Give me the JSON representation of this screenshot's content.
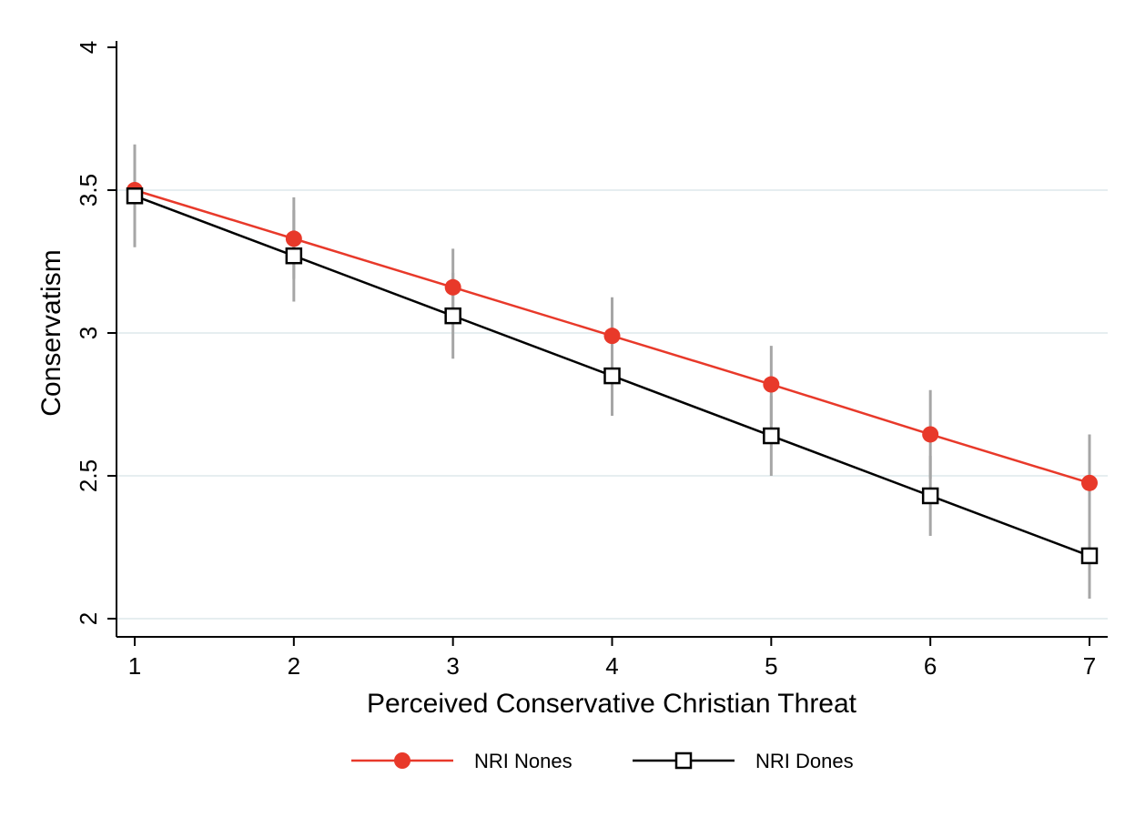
{
  "chart_data": {
    "type": "line",
    "title": "",
    "xlabel": "Perceived Conservative Christian Threat",
    "ylabel": "Conservatism",
    "x": [
      1,
      2,
      3,
      4,
      5,
      6,
      7
    ],
    "x_ticks": [
      "1",
      "2",
      "3",
      "4",
      "5",
      "6",
      "7"
    ],
    "y_ticks": [
      "2",
      "2.5",
      "3",
      "3.5",
      "4"
    ],
    "xlim": [
      1,
      7
    ],
    "ylim": [
      2,
      4
    ],
    "grid": "horizontal",
    "legend_position": "bottom",
    "series": [
      {
        "name": "NRI Nones",
        "marker": "filled-circle",
        "color": "#e8392a",
        "values": [
          3.5,
          3.33,
          3.16,
          2.99,
          2.82,
          2.645,
          2.475
        ],
        "ci_low": [
          3.34,
          3.19,
          3.03,
          2.86,
          2.68,
          2.49,
          2.3
        ],
        "ci_high": [
          3.66,
          3.475,
          3.295,
          3.125,
          2.955,
          2.8,
          2.645
        ]
      },
      {
        "name": "NRI Dones",
        "marker": "hollow-square",
        "color": "#000000",
        "values": [
          3.48,
          3.27,
          3.06,
          2.85,
          2.64,
          2.43,
          2.22
        ],
        "ci_low": [
          3.3,
          3.11,
          2.91,
          2.71,
          2.5,
          2.29,
          2.07
        ],
        "ci_high": [
          3.6,
          3.43,
          3.21,
          2.99,
          2.78,
          2.57,
          2.37
        ]
      }
    ]
  },
  "colors": {
    "ci_bar": "#a6a6a6",
    "gridline": "#e6eef0",
    "axis": "#000000"
  }
}
